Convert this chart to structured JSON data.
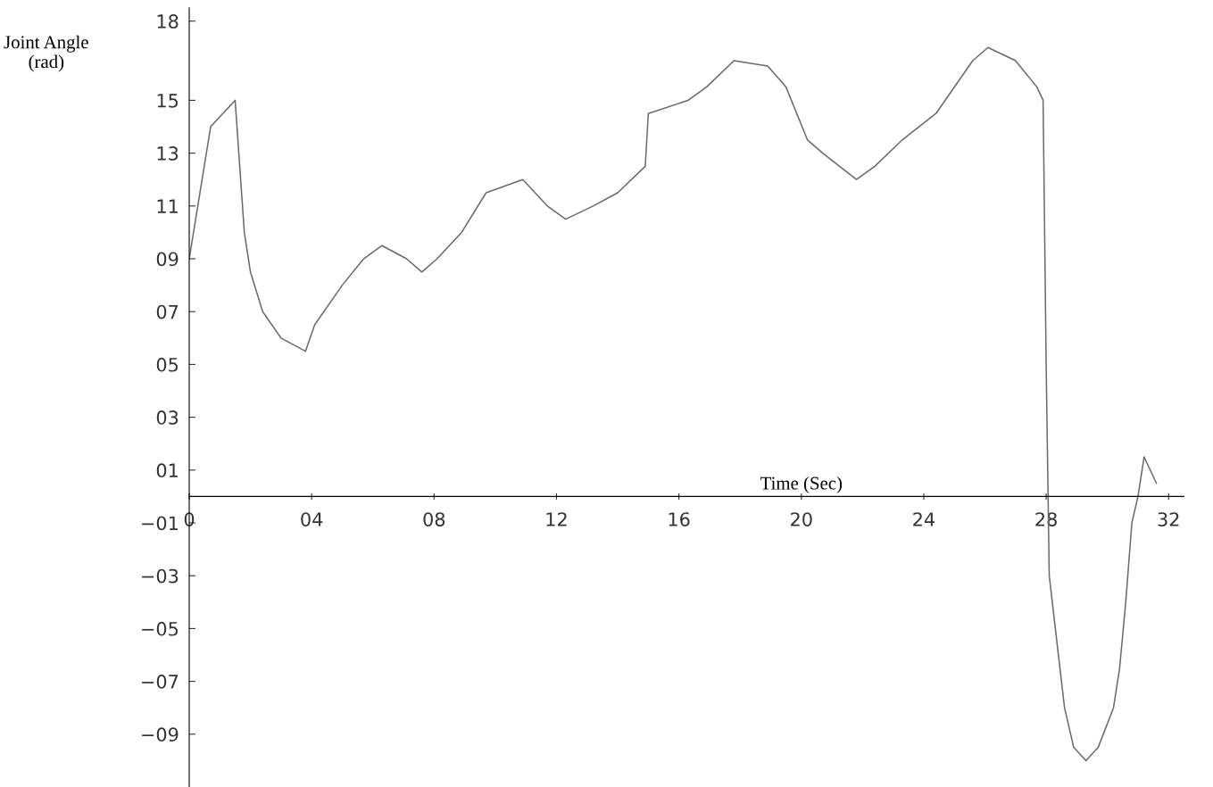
{
  "chart_data": {
    "type": "line",
    "xlabel": "Time (Sec)",
    "ylabel": "Joint Angle\n(rad)",
    "x": [
      0,
      0.7,
      1.5,
      1.8,
      2.0,
      2.4,
      3.0,
      3.8,
      4.1,
      5.0,
      5.7,
      6.3,
      7.1,
      7.6,
      8.1,
      8.9,
      9.7,
      10.9,
      11.7,
      12.3,
      13.2,
      14.0,
      14.9,
      15.0,
      16.3,
      16.9,
      17.8,
      18.9,
      19.5,
      20.2,
      20.7,
      21.8,
      22.4,
      23.3,
      24.4,
      25.6,
      26.1,
      27.0,
      27.7,
      27.9,
      28.0,
      28.1,
      28.3,
      28.6,
      28.9,
      29.3,
      29.7,
      30.2,
      30.4,
      30.6,
      30.8,
      31.0,
      31.2,
      31.6
    ],
    "series": [
      {
        "color": "#6a6a6a",
        "values": [
          9,
          14,
          15,
          10,
          8.5,
          7,
          6,
          5.5,
          6.5,
          8,
          9,
          9.5,
          9,
          8.5,
          9,
          10,
          11.5,
          12,
          11,
          10.5,
          11,
          11.5,
          12.5,
          14.5,
          15,
          15.5,
          16.5,
          16.3,
          15.5,
          13.5,
          13,
          12,
          12.5,
          13.5,
          14.5,
          16.5,
          17,
          16.5,
          15.5,
          15,
          5,
          -3,
          -5,
          -8,
          -9.5,
          -10,
          -9.5,
          -8,
          -6.5,
          -4,
          -1,
          0,
          1.5,
          0.5
        ]
      }
    ],
    "xlim": [
      0,
      32.5
    ],
    "ylim": [
      -11,
      18.5
    ],
    "xticks": [
      0,
      {
        "value": 4,
        "label": "04"
      },
      {
        "value": 8,
        "label": "08"
      },
      12,
      16,
      20,
      24,
      28,
      32
    ],
    "yticks": [
      18,
      15,
      13,
      11,
      {
        "value": 9,
        "label": "09"
      },
      {
        "value": 7,
        "label": "07"
      },
      {
        "value": 5,
        "label": "05"
      },
      {
        "value": 3,
        "label": "03"
      },
      {
        "value": 1,
        "label": "01"
      },
      {
        "value": -1,
        "label": "−01"
      },
      {
        "value": -3,
        "label": "−03"
      },
      {
        "value": -5,
        "label": "−05"
      },
      {
        "value": -7,
        "label": "−07"
      },
      {
        "value": -9,
        "label": "−09"
      }
    ],
    "grid": false,
    "legend": false,
    "marker": "none",
    "line_style": "solid"
  }
}
